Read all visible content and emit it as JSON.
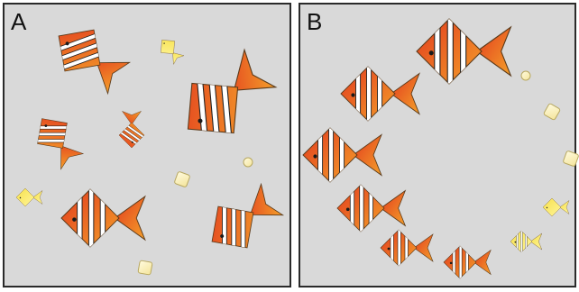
{
  "panels": [
    {
      "label": "A",
      "fish": [
        {
          "variant": "clownfish",
          "stripes": "oblique"
        },
        {
          "variant": "yellow-tang",
          "stripes": "none"
        },
        {
          "variant": "clownfish",
          "stripes": "oblique"
        },
        {
          "variant": "clownfish",
          "stripes": "oblique"
        },
        {
          "variant": "orange-small",
          "stripes": "oblique"
        },
        {
          "variant": "yellow-tang",
          "stripes": "none"
        },
        {
          "variant": "clownfish",
          "stripes": "vertical"
        },
        {
          "variant": "clownfish",
          "stripes": "oblique"
        }
      ],
      "food": [
        {
          "shape": "pellet-round"
        },
        {
          "shape": "pellet-square"
        },
        {
          "shape": "pellet-square"
        }
      ]
    },
    {
      "label": "B",
      "fish": [
        {
          "variant": "clownfish",
          "stripes": "vertical"
        },
        {
          "variant": "clownfish",
          "stripes": "vertical"
        },
        {
          "variant": "clownfish",
          "stripes": "vertical"
        },
        {
          "variant": "clownfish",
          "stripes": "vertical"
        },
        {
          "variant": "clownfish",
          "stripes": "vertical"
        },
        {
          "variant": "clownfish",
          "stripes": "vertical"
        },
        {
          "variant": "yellow-tang",
          "stripes": "vertical"
        },
        {
          "variant": "yellow-tang",
          "stripes": "none"
        }
      ],
      "food": [
        {
          "shape": "pellet-round"
        },
        {
          "shape": "pellet-square"
        },
        {
          "shape": "pellet-square"
        }
      ]
    }
  ],
  "colors": {
    "tank_bg": "#d9d9d9",
    "tank_border": "#2a2a2a",
    "fish_dark": "#e23a1e",
    "fish_light": "#f4a02a",
    "tang_body": "#f6e04a",
    "tang_light": "#fff59a",
    "stripe": "#ffffff",
    "eye": "#1a1a1a",
    "food_fill": "#fff6c8",
    "food_stroke": "#b8a860"
  }
}
